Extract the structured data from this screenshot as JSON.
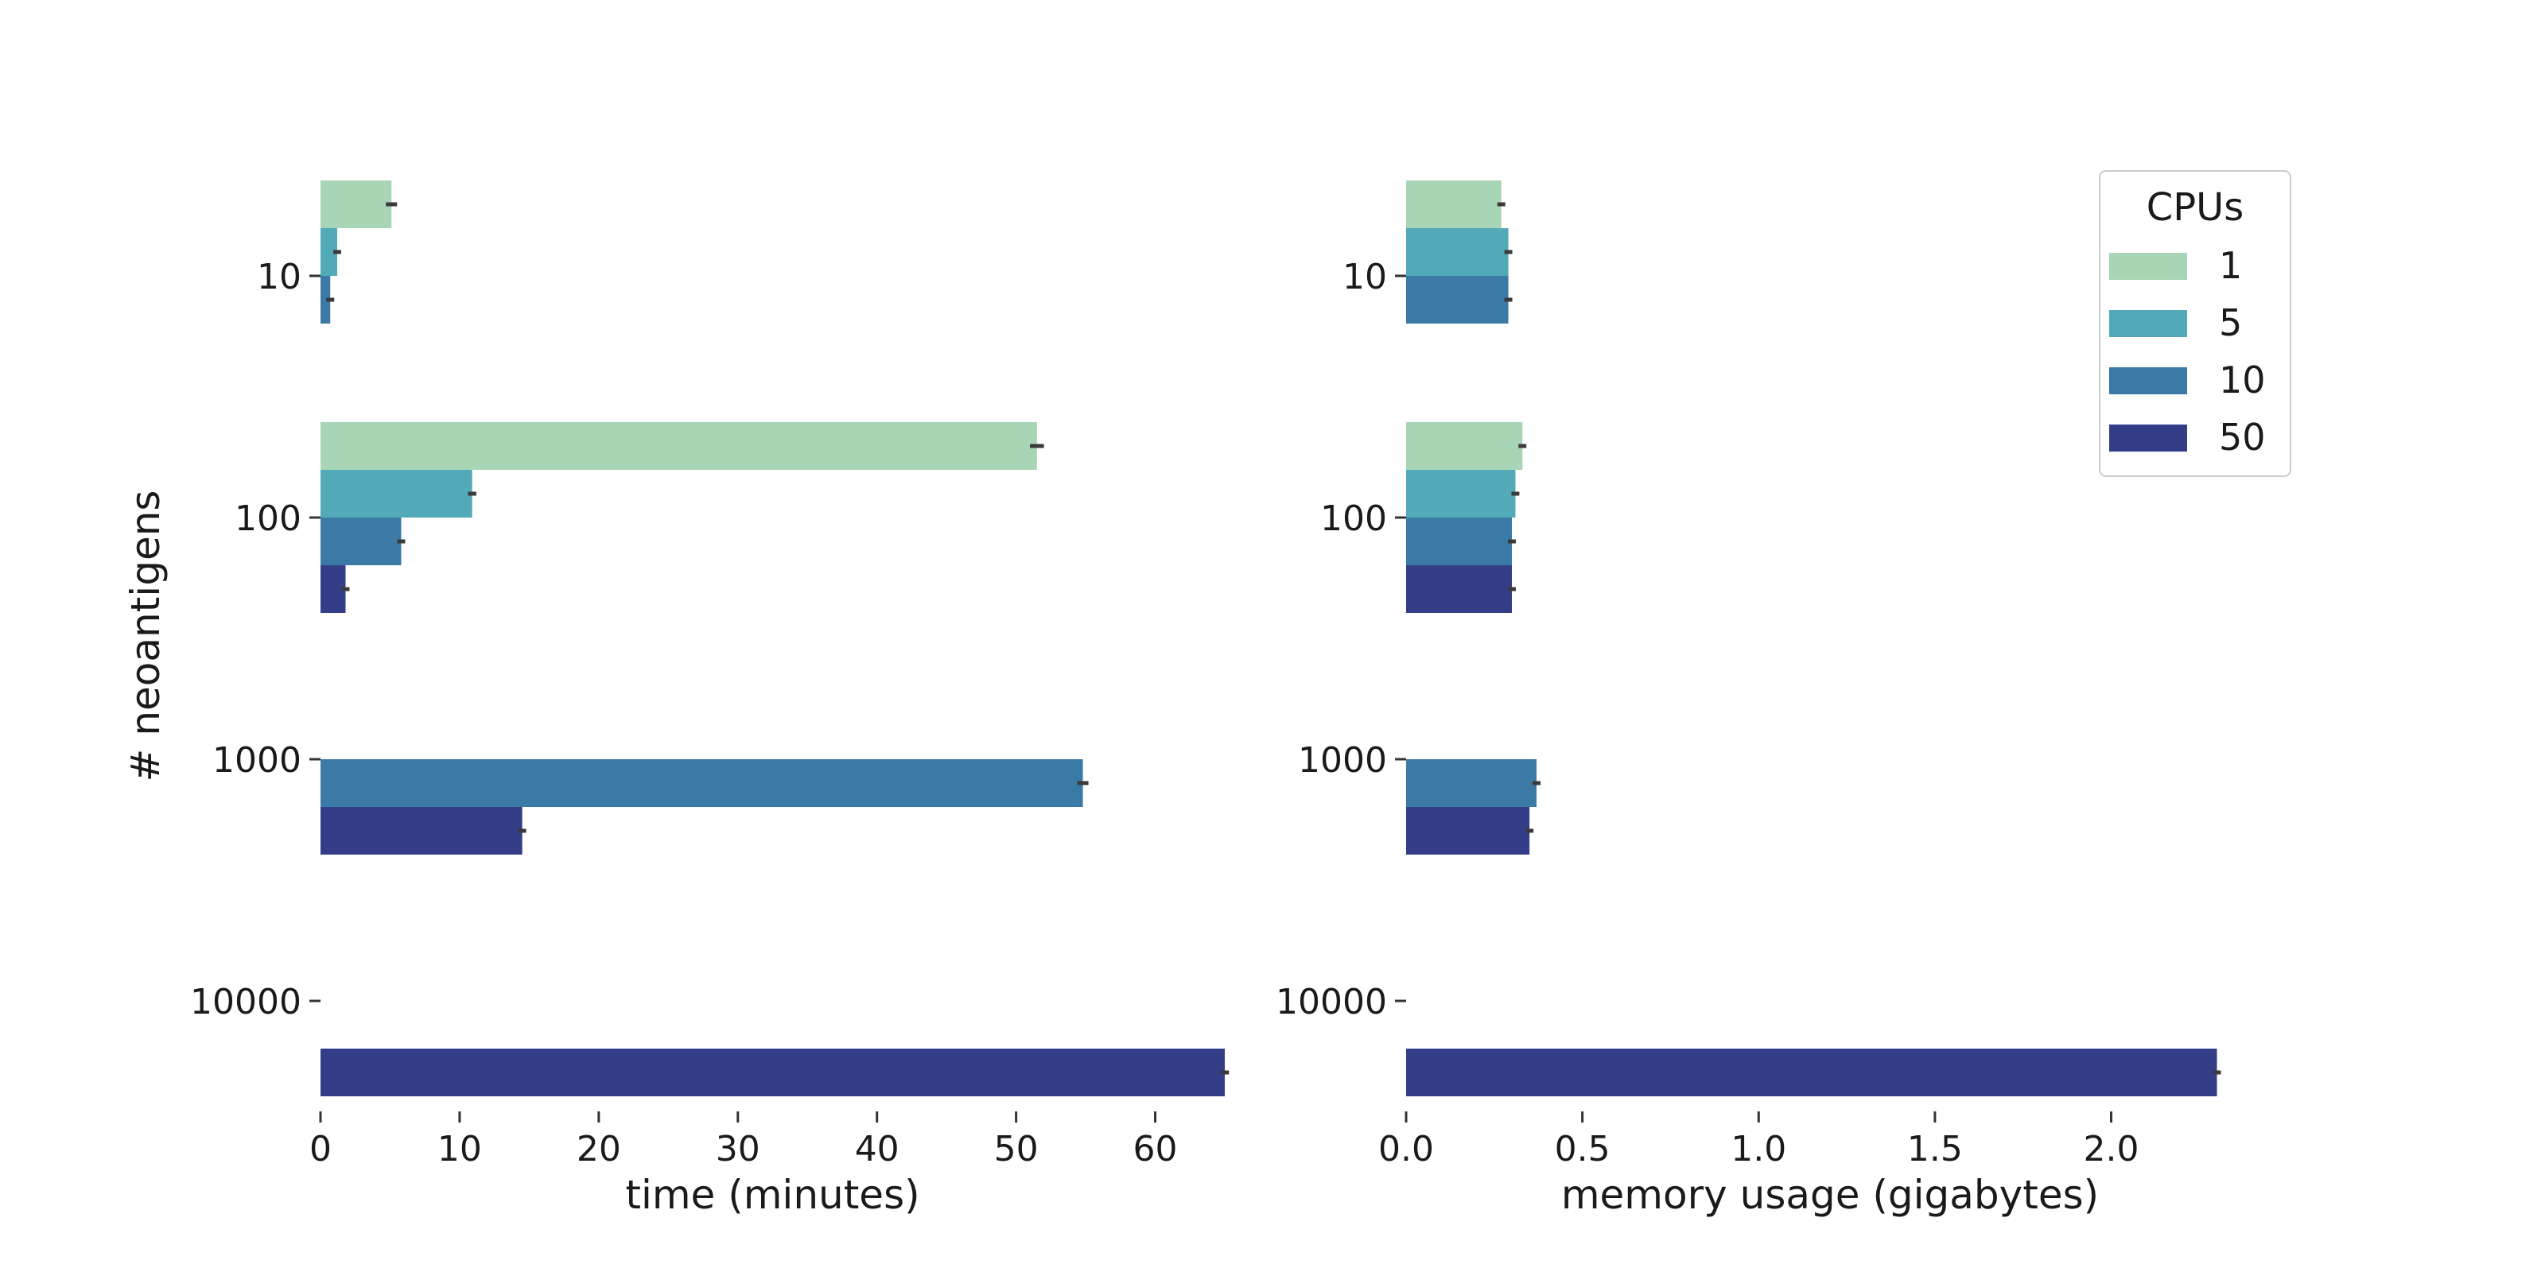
{
  "figure": {
    "ylabel": "# neoantigens",
    "categories": [
      "10",
      "100",
      "1000",
      "10000"
    ]
  },
  "legend": {
    "title": "CPUs",
    "items": [
      {
        "label": "1",
        "color": "#a8d5b5"
      },
      {
        "label": "5",
        "color": "#52aab8"
      },
      {
        "label": "10",
        "color": "#3b7aa6"
      },
      {
        "label": "50",
        "color": "#343e88"
      }
    ]
  },
  "chart_data": [
    {
      "type": "bar",
      "orientation": "horizontal",
      "categories": [
        "10",
        "100",
        "1000",
        "10000"
      ],
      "xlabel": "time (minutes)",
      "ylabel": "# neoantigens",
      "xlim": [
        0,
        65
      ],
      "xticks": [
        "0",
        "10",
        "20",
        "30",
        "40",
        "50",
        "60"
      ],
      "grid": false,
      "series": [
        {
          "name": "1",
          "values": [
            5.1,
            51.5,
            null,
            null
          ],
          "errors": [
            0.4,
            0.5,
            null,
            null
          ]
        },
        {
          "name": "5",
          "values": [
            1.2,
            10.9,
            null,
            null
          ],
          "errors": [
            0.2,
            0.3,
            null,
            null
          ]
        },
        {
          "name": "10",
          "values": [
            0.7,
            5.8,
            54.8,
            null
          ],
          "errors": [
            0.1,
            0.2,
            0.4,
            null
          ]
        },
        {
          "name": "50",
          "values": [
            null,
            1.8,
            14.5,
            65.0
          ],
          "errors": [
            null,
            0.1,
            0.2,
            0.3
          ]
        }
      ]
    },
    {
      "type": "bar",
      "orientation": "horizontal",
      "categories": [
        "10",
        "100",
        "1000",
        "10000"
      ],
      "xlabel": "memory usage (gigabytes)",
      "xlim": [
        0,
        2.45
      ],
      "xticks": [
        "0.0",
        "0.5",
        "1.0",
        "1.5",
        "2.0"
      ],
      "grid": false,
      "legend_position": "top-right",
      "series": [
        {
          "name": "1",
          "values": [
            0.27,
            0.33,
            null,
            null
          ],
          "errors": [
            0.0,
            0.0,
            null,
            null
          ]
        },
        {
          "name": "5",
          "values": [
            0.29,
            0.31,
            null,
            null
          ],
          "errors": [
            0.01,
            0.01,
            null,
            null
          ]
        },
        {
          "name": "10",
          "values": [
            0.29,
            0.3,
            0.37,
            null
          ],
          "errors": [
            0.01,
            0.01,
            0.01,
            null
          ]
        },
        {
          "name": "50",
          "values": [
            null,
            0.3,
            0.35,
            2.3
          ],
          "errors": [
            null,
            0.01,
            0.01,
            0.01
          ]
        }
      ]
    }
  ]
}
